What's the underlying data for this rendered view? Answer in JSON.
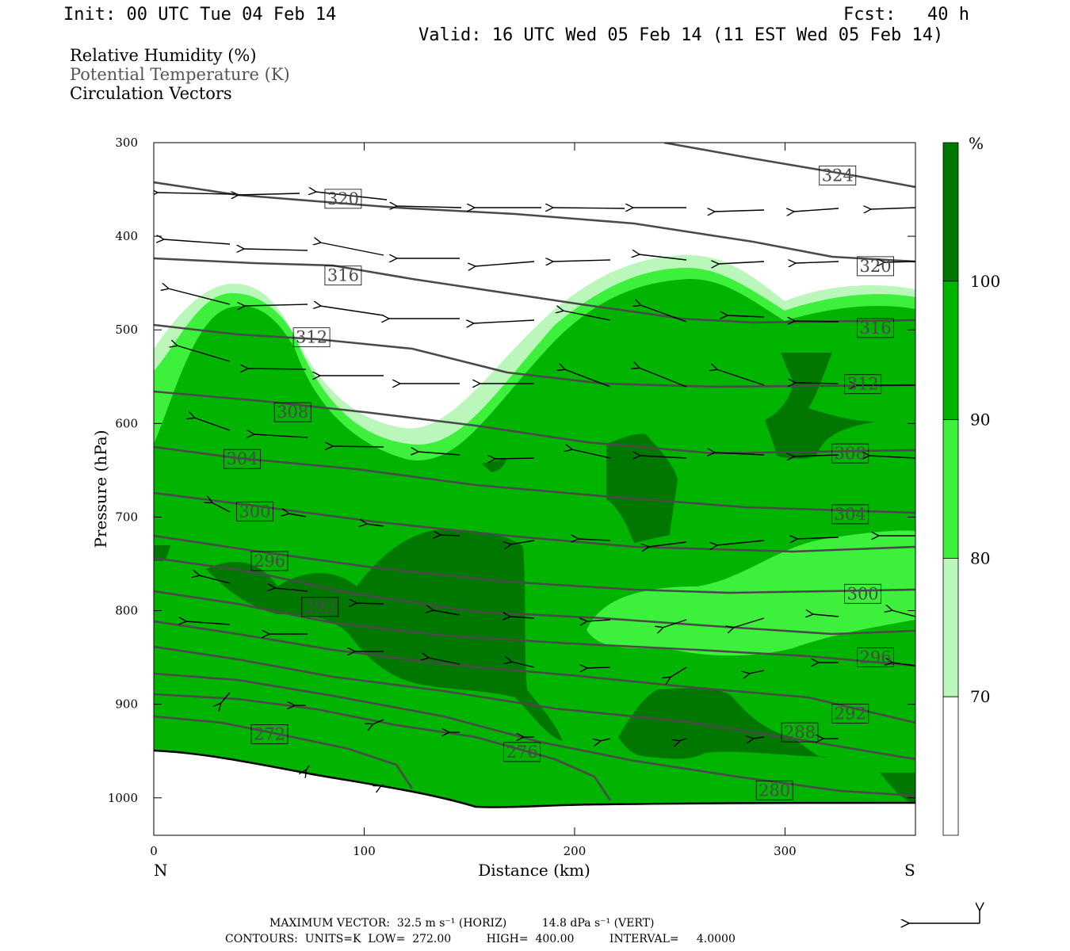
{
  "header": {
    "init": "Init: 00 UTC Tue 04 Feb 14",
    "fcst": "Fcst:   40 h",
    "valid": "Valid: 16 UTC Wed 05 Feb 14 (11 EST Wed 05 Feb 14)"
  },
  "fields": {
    "line1": "Relative Humidity (%)",
    "line2": "Potential Temperature (K)",
    "line3": "Circulation Vectors"
  },
  "footer": {
    "max_vector": "MAXIMUM VECTOR:  32.5 m s⁻¹ (HORIZ)          14.8 dPa s⁻¹ (VERT)",
    "contours": "CONTOURS:  UNITS=K  LOW=  272.00          HIGH=  400.00          INTERVAL=     4.0000"
  },
  "colors": {
    "rh_70_80": "#bbf7bb",
    "rh_80_90": "#3cf03c",
    "rh_90_100": "#00b400",
    "rh_100_plus": "#007800",
    "theta_line": "#4a4a4a",
    "vector": "#000000"
  },
  "chart_data": {
    "type": "cross-section",
    "xlabel": "Distance (km)",
    "ylabel": "Pressure (hPa)",
    "x_ticks": [
      0,
      100,
      200,
      300
    ],
    "y_ticks": [
      300,
      400,
      500,
      600,
      700,
      800,
      900,
      1000
    ],
    "x_range": [
      0,
      362
    ],
    "y_range": [
      300,
      1040
    ],
    "left_endpoint": "N",
    "right_endpoint": "S",
    "colorbar": {
      "unit": "%",
      "levels": [
        70,
        80,
        90,
        100
      ],
      "labels": [
        "70",
        "80",
        "90",
        "100"
      ]
    },
    "theta_labels": [
      {
        "value": "324",
        "x": 325,
        "p": 335
      },
      {
        "value": "320",
        "x": 90,
        "p": 360
      },
      {
        "value": "320",
        "x": 343,
        "p": 432
      },
      {
        "value": "316",
        "x": 90,
        "p": 442
      },
      {
        "value": "316",
        "x": 343,
        "p": 498
      },
      {
        "value": "312",
        "x": 75,
        "p": 508
      },
      {
        "value": "312",
        "x": 337,
        "p": 558
      },
      {
        "value": "308",
        "x": 66,
        "p": 588
      },
      {
        "value": "308",
        "x": 331,
        "p": 632
      },
      {
        "value": "304",
        "x": 42,
        "p": 638
      },
      {
        "value": "304",
        "x": 331,
        "p": 697
      },
      {
        "value": "300",
        "x": 48,
        "p": 694
      },
      {
        "value": "300",
        "x": 337,
        "p": 782
      },
      {
        "value": "296",
        "x": 55,
        "p": 747
      },
      {
        "value": "296",
        "x": 343,
        "p": 850
      },
      {
        "value": "292",
        "x": 79,
        "p": 796
      },
      {
        "value": "292",
        "x": 331,
        "p": 910
      },
      {
        "value": "288",
        "x": 307,
        "p": 930
      },
      {
        "value": "280",
        "x": 295,
        "p": 992
      },
      {
        "value": "276",
        "x": 175,
        "p": 951
      },
      {
        "value": "272",
        "x": 55,
        "p": 932
      }
    ],
    "max_vector_horiz_m_s": 32.5,
    "max_vector_vert_dPa_s": 14.8,
    "contour_low": 272.0,
    "contour_high": 400.0,
    "contour_interval": 4.0
  }
}
